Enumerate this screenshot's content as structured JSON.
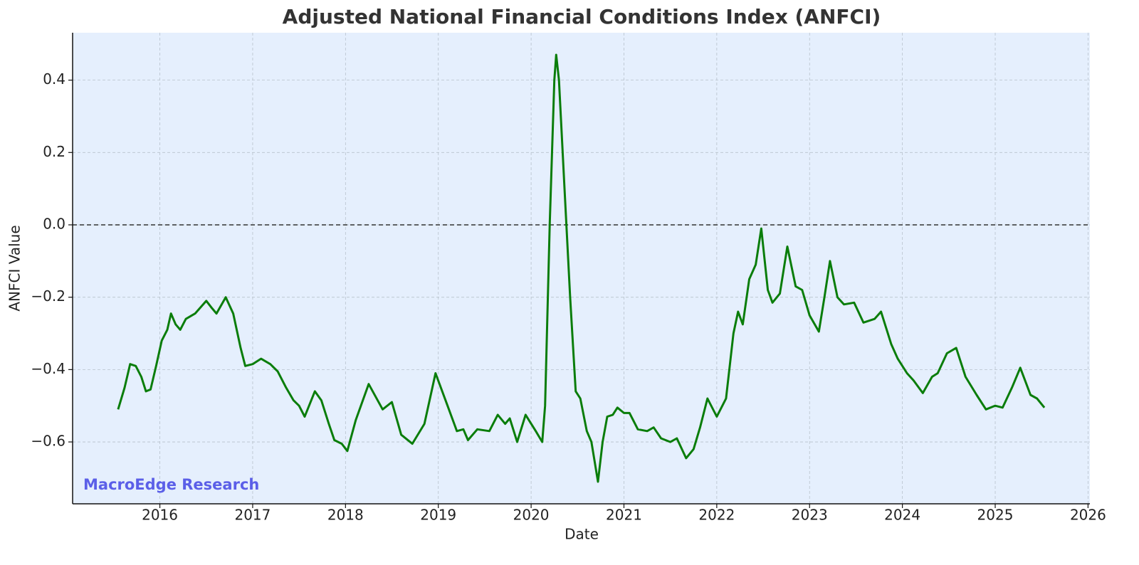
{
  "chart_data": {
    "type": "line",
    "title": "Adjusted National Financial Conditions Index (ANFCI)",
    "xlabel": "Date",
    "ylabel": "ANFCI Value",
    "watermark": "MacroEdge Research",
    "background": "#e5effd",
    "grid": true,
    "hline": 0,
    "xlim": [
      2015.06,
      2026.02
    ],
    "ylim": [
      -0.771,
      0.531
    ],
    "xticks": [
      2016,
      2017,
      2018,
      2019,
      2020,
      2021,
      2022,
      2023,
      2024,
      2025,
      2026
    ],
    "yticks": [
      {
        "value": -0.6,
        "label": "−0.6"
      },
      {
        "value": -0.4,
        "label": "−0.4"
      },
      {
        "value": -0.2,
        "label": "−0.2"
      },
      {
        "value": 0,
        "label": "0.0"
      },
      0.2,
      0.4
    ],
    "series": [
      {
        "name": "ANFCI",
        "color": "#0a7d0a",
        "x": [
          2015.55,
          2015.62,
          2015.68,
          2015.74,
          2015.8,
          2015.85,
          2015.9,
          2015.96,
          2016.02,
          2016.08,
          2016.12,
          2016.17,
          2016.22,
          2016.28,
          2016.38,
          2016.5,
          2016.56,
          2016.61,
          2016.71,
          2016.79,
          2016.87,
          2016.92,
          2017.0,
          2017.09,
          2017.19,
          2017.27,
          2017.36,
          2017.44,
          2017.5,
          2017.56,
          2017.67,
          2017.74,
          2017.82,
          2017.88,
          2017.96,
          2018.02,
          2018.11,
          2018.25,
          2018.4,
          2018.5,
          2018.6,
          2018.72,
          2018.85,
          2018.97,
          2019.1,
          2019.2,
          2019.27,
          2019.32,
          2019.42,
          2019.55,
          2019.64,
          2019.72,
          2019.77,
          2019.85,
          2019.94,
          2020.05,
          2020.12,
          2020.15,
          2020.2,
          2020.25,
          2020.27,
          2020.3,
          2020.36,
          2020.42,
          2020.48,
          2020.53,
          2020.6,
          2020.65,
          2020.72,
          2020.77,
          2020.82,
          2020.88,
          2020.93,
          2021.0,
          2021.06,
          2021.15,
          2021.25,
          2021.32,
          2021.4,
          2021.5,
          2021.57,
          2021.67,
          2021.75,
          2021.82,
          2021.9,
          2022.0,
          2022.1,
          2022.18,
          2022.23,
          2022.28,
          2022.35,
          2022.42,
          2022.48,
          2022.55,
          2022.6,
          2022.68,
          2022.76,
          2022.85,
          2022.92,
          2023.0,
          2023.1,
          2023.16,
          2023.22,
          2023.3,
          2023.37,
          2023.48,
          2023.58,
          2023.7,
          2023.77,
          2023.88,
          2023.95,
          2024.05,
          2024.12,
          2024.22,
          2024.32,
          2024.38,
          2024.48,
          2024.58,
          2024.68,
          2024.8,
          2024.9,
          2025.0,
          2025.08,
          2025.18,
          2025.27,
          2025.38,
          2025.45,
          2025.53
        ],
        "values": [
          -0.51,
          -0.45,
          -0.385,
          -0.39,
          -0.42,
          -0.46,
          -0.455,
          -0.39,
          -0.32,
          -0.29,
          -0.245,
          -0.275,
          -0.29,
          -0.26,
          -0.245,
          -0.21,
          -0.23,
          -0.245,
          -0.2,
          -0.245,
          -0.34,
          -0.39,
          -0.385,
          -0.37,
          -0.385,
          -0.405,
          -0.45,
          -0.485,
          -0.5,
          -0.53,
          -0.46,
          -0.485,
          -0.55,
          -0.595,
          -0.605,
          -0.625,
          -0.54,
          -0.44,
          -0.51,
          -0.49,
          -0.58,
          -0.605,
          -0.55,
          -0.41,
          -0.5,
          -0.57,
          -0.565,
          -0.595,
          -0.565,
          -0.57,
          -0.525,
          -0.55,
          -0.535,
          -0.6,
          -0.525,
          -0.57,
          -0.6,
          -0.5,
          0.0,
          0.4,
          0.47,
          0.4,
          0.1,
          -0.2,
          -0.46,
          -0.48,
          -0.57,
          -0.6,
          -0.71,
          -0.6,
          -0.53,
          -0.525,
          -0.505,
          -0.52,
          -0.52,
          -0.565,
          -0.57,
          -0.56,
          -0.59,
          -0.6,
          -0.59,
          -0.645,
          -0.62,
          -0.56,
          -0.48,
          -0.53,
          -0.48,
          -0.3,
          -0.24,
          -0.275,
          -0.15,
          -0.11,
          -0.01,
          -0.18,
          -0.215,
          -0.19,
          -0.06,
          -0.17,
          -0.18,
          -0.25,
          -0.295,
          -0.2,
          -0.1,
          -0.2,
          -0.22,
          -0.215,
          -0.27,
          -0.26,
          -0.24,
          -0.33,
          -0.37,
          -0.41,
          -0.43,
          -0.465,
          -0.42,
          -0.41,
          -0.355,
          -0.34,
          -0.42,
          -0.47,
          -0.51,
          -0.5,
          -0.505,
          -0.45,
          -0.395,
          -0.47,
          -0.48,
          -0.505
        ]
      }
    ]
  }
}
